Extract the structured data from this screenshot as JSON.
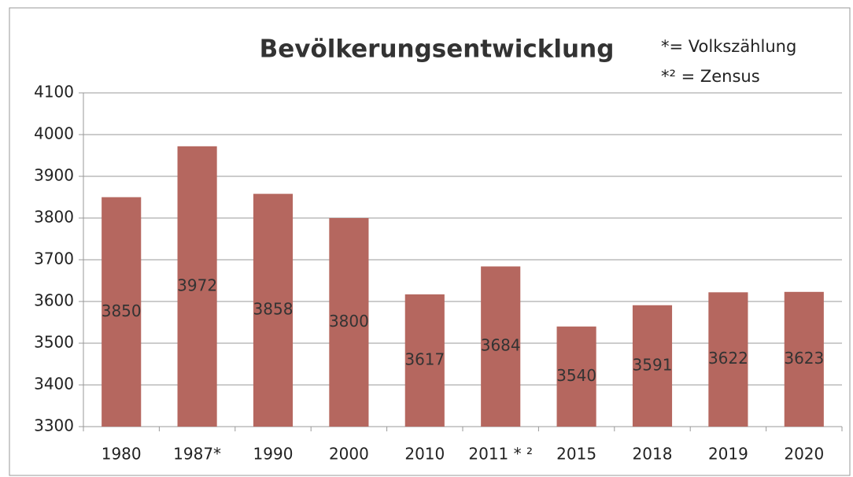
{
  "chart_data": {
    "type": "bar",
    "title": "Bevölkerungsentwicklung",
    "annotations": [
      "*= Volkszählung",
      "*² = Zensus"
    ],
    "categories": [
      "1980",
      "1987*",
      "1990",
      "2000",
      "2010",
      "2011 * ²",
      "2015",
      "2018",
      "2019",
      "2020"
    ],
    "values": [
      3850,
      3972,
      3858,
      3800,
      3617,
      3684,
      3540,
      3591,
      3622,
      3623
    ],
    "color": "#b5675f",
    "ylim": [
      3300,
      4100
    ],
    "yticks": [
      3300,
      3400,
      3500,
      3600,
      3700,
      3800,
      3900,
      4000,
      4100
    ],
    "grid": true
  }
}
